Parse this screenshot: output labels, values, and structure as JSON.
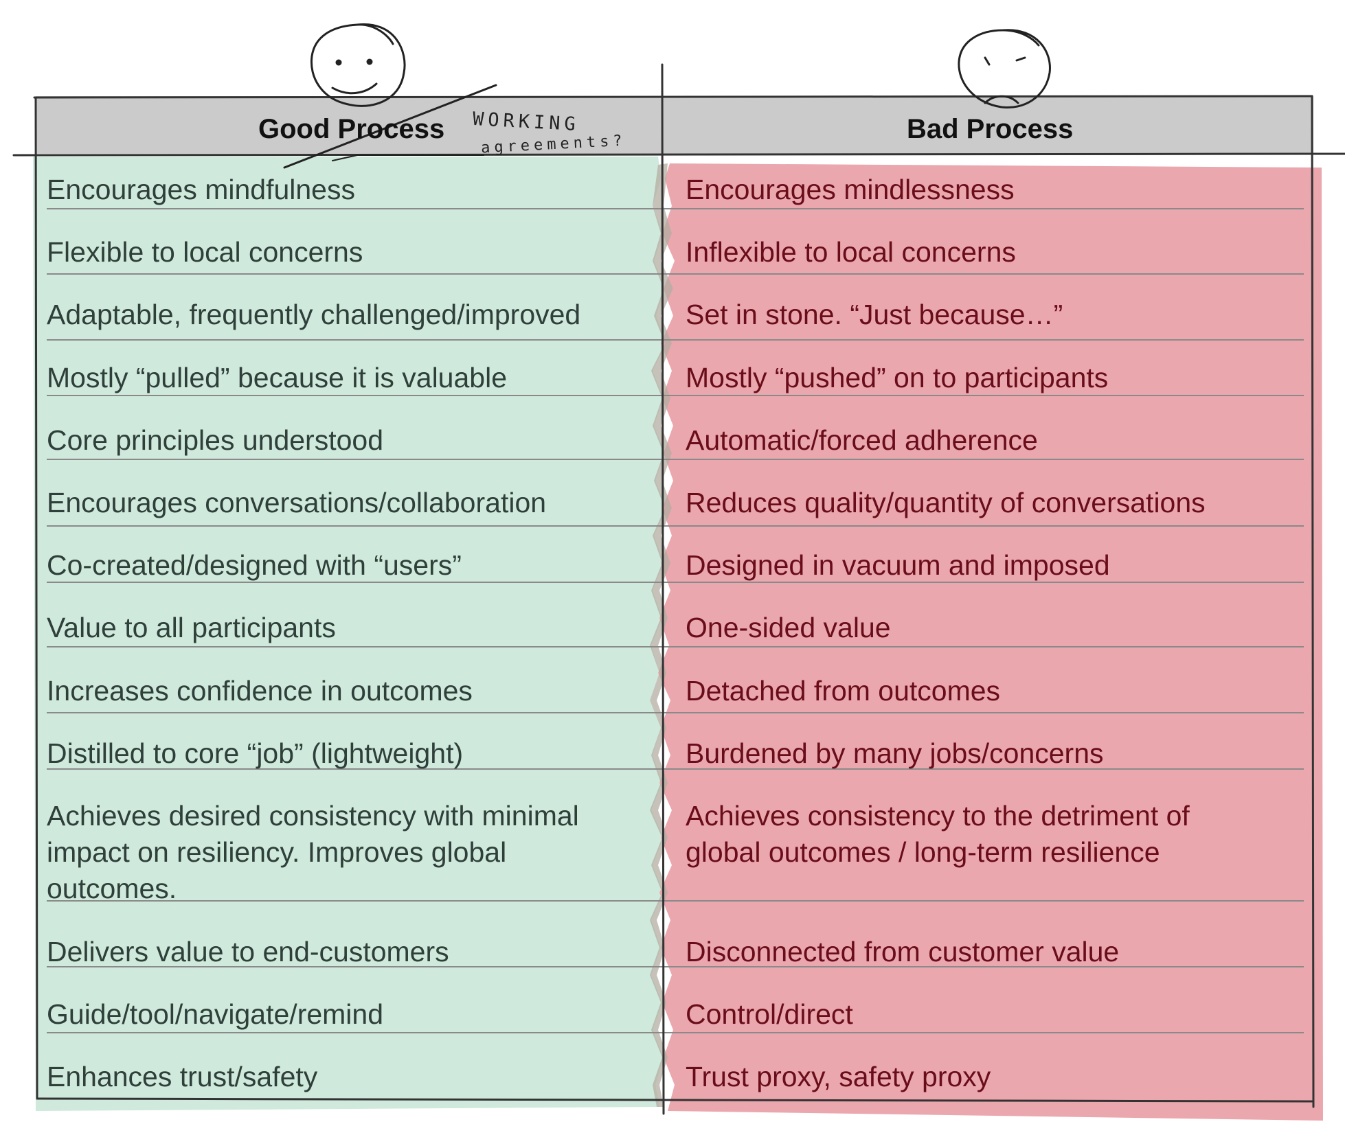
{
  "headers": {
    "good": "Good Process",
    "bad": "Bad Process"
  },
  "annotation": {
    "line1": "WORKING",
    "line2": "agreements?"
  },
  "icons": {
    "good": "smiley-face-icon",
    "bad": "frowny-face-icon"
  },
  "colors": {
    "good_fill": "#cfe9dc",
    "bad_fill": "#eba7ae",
    "header_fill": "#cbcbcb",
    "ink": "#333333"
  },
  "rows": [
    {
      "good": "Encourages mindfulness",
      "bad": "Encourages mindlessness"
    },
    {
      "good": "Flexible to local concerns",
      "bad": "Inflexible to local concerns"
    },
    {
      "good": "Adaptable, frequently challenged/improved",
      "bad": "Set in stone. “Just because…”"
    },
    {
      "good": "Mostly “pulled” because it is valuable",
      "bad": "Mostly “pushed” on to participants"
    },
    {
      "good": "Core principles understood",
      "bad": "Automatic/forced adherence"
    },
    {
      "good": "Encourages conversations/collaboration",
      "bad": "Reduces quality/quantity of conversations"
    },
    {
      "good": "Co-created/designed with “users”",
      "bad": "Designed in vacuum and imposed"
    },
    {
      "good": "Value to all participants",
      "bad": "One-sided value"
    },
    {
      "good": "Increases confidence in outcomes",
      "bad": "Detached from outcomes"
    },
    {
      "good": "Distilled to core “job” (lightweight)",
      "bad": "Burdened by many jobs/concerns"
    },
    {
      "good": [
        "Achieves desired consistency with minimal",
        "impact on resiliency. Improves global",
        "outcomes."
      ],
      "bad": [
        "Achieves consistency to the detriment of",
        "global outcomes / long-term resilience"
      ]
    },
    {
      "good": "Delivers value to end-customers",
      "bad": "Disconnected from customer value"
    },
    {
      "good": "Guide/tool/navigate/remind",
      "bad": "Control/direct"
    },
    {
      "good": "Enhances trust/safety",
      "bad": "Trust proxy, safety proxy"
    }
  ]
}
